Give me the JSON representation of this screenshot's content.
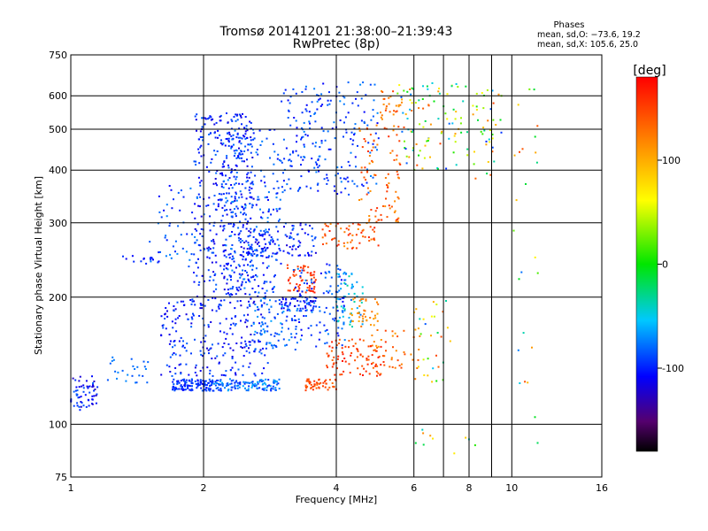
{
  "chart_data": {
    "type": "scatter",
    "title": "Tromsø 20141201 21:38:00–21:39:43",
    "subtitle": "RwPretec (8p)",
    "xlabel": "Frequency [MHz]",
    "ylabel": "Stationary phase Virtual Height [km]",
    "x_scale": "log",
    "y_scale": "log",
    "xlim": [
      1,
      16
    ],
    "ylim": [
      75,
      750
    ],
    "x_ticks": [
      1,
      2,
      4,
      6,
      8,
      10,
      16
    ],
    "y_ticks": [
      75,
      100,
      200,
      300,
      400,
      500,
      600,
      750
    ],
    "x_minor_gridlines": [
      7,
      9
    ],
    "grid": true,
    "legend": {
      "title": "Phases",
      "lines": [
        "mean, sd,O: −73.6, 19.2",
        "mean, sd,X: 105.6, 25.0"
      ],
      "placement": "top-right"
    },
    "colorbar": {
      "label": "[deg]",
      "range": [
        -180,
        180
      ],
      "ticks": [
        100,
        0,
        -100
      ],
      "colormap": "rainbow"
    },
    "clusters": [
      {
        "x": [
          1.0,
          1.15
        ],
        "y": [
          108,
          130
        ],
        "phase": [
          -130,
          -80
        ],
        "n": 60
      },
      {
        "x": [
          1.15,
          1.5
        ],
        "y": [
          125,
          145
        ],
        "phase": [
          -90,
          -70
        ],
        "n": 25
      },
      {
        "x": [
          1.7,
          2.1
        ],
        "y": [
          120,
          128
        ],
        "phase": [
          -110,
          -80
        ],
        "n": 120
      },
      {
        "x": [
          2.1,
          3.0
        ],
        "y": [
          120,
          128
        ],
        "phase": [
          -100,
          -60
        ],
        "n": 120
      },
      {
        "x": [
          1.6,
          2.8
        ],
        "y": [
          130,
          200
        ],
        "phase": [
          -120,
          -80
        ],
        "n": 240
      },
      {
        "x": [
          1.9,
          2.6
        ],
        "y": [
          200,
          550
        ],
        "phase": [
          -120,
          -80
        ],
        "n": 380
      },
      {
        "x": [
          2.2,
          3.0
        ],
        "y": [
          200,
          500
        ],
        "phase": [
          -110,
          -70
        ],
        "n": 260
      },
      {
        "x": [
          1.5,
          1.95
        ],
        "y": [
          235,
          370
        ],
        "phase": [
          -110,
          -70
        ],
        "n": 50
      },
      {
        "x": [
          1.3,
          1.6
        ],
        "y": [
          238,
          252
        ],
        "phase": [
          -110,
          -90
        ],
        "n": 12
      },
      {
        "x": [
          2.4,
          3.6
        ],
        "y": [
          250,
          300
        ],
        "phase": [
          -120,
          -80
        ],
        "n": 110
      },
      {
        "x": [
          3.0,
          3.6
        ],
        "y": [
          185,
          200
        ],
        "phase": [
          -120,
          -90
        ],
        "n": 45
      },
      {
        "x": [
          2.6,
          3.2
        ],
        "y": [
          150,
          200
        ],
        "phase": [
          -100,
          -60
        ],
        "n": 80
      },
      {
        "x": [
          3.1,
          3.6
        ],
        "y": [
          205,
          240
        ],
        "phase": [
          140,
          170
        ],
        "n": 60
      },
      {
        "x": [
          3.4,
          4.0
        ],
        "y": [
          120,
          128
        ],
        "phase": [
          130,
          160
        ],
        "n": 50
      },
      {
        "x": [
          3.8,
          5.2
        ],
        "y": [
          130,
          160
        ],
        "phase": [
          130,
          170
        ],
        "n": 90
      },
      {
        "x": [
          3.2,
          4.2
        ],
        "y": [
          150,
          240
        ],
        "phase": [
          -110,
          -70
        ],
        "n": 120
      },
      {
        "x": [
          4.0,
          4.6
        ],
        "y": [
          170,
          230
        ],
        "phase": [
          -80,
          -30
        ],
        "n": 60
      },
      {
        "x": [
          4.3,
          5.0
        ],
        "y": [
          170,
          200
        ],
        "phase": [
          100,
          130
        ],
        "n": 40
      },
      {
        "x": [
          3.7,
          5.0
        ],
        "y": [
          260,
          300
        ],
        "phase": [
          110,
          170
        ],
        "n": 60
      },
      {
        "x": [
          4.5,
          5.6
        ],
        "y": [
          300,
          520
        ],
        "phase": [
          110,
          160
        ],
        "n": 90
      },
      {
        "x": [
          5.0,
          5.6
        ],
        "y": [
          520,
          620
        ],
        "phase": [
          110,
          150
        ],
        "n": 25
      },
      {
        "x": [
          3.0,
          5.0
        ],
        "y": [
          350,
          650
        ],
        "phase": [
          -110,
          -70
        ],
        "n": 220
      },
      {
        "x": [
          4.8,
          6.2
        ],
        "y": [
          135,
          170
        ],
        "phase": [
          100,
          150
        ],
        "n": 40
      },
      {
        "x": [
          5.5,
          8.0
        ],
        "y": [
          400,
          650
        ],
        "phase": [
          -100,
          150
        ],
        "n": 100
      },
      {
        "x": [
          8.0,
          9.5
        ],
        "y": [
          380,
          620
        ],
        "phase": [
          -100,
          150
        ],
        "n": 40
      },
      {
        "x": [
          6.0,
          7.5
        ],
        "y": [
          125,
          200
        ],
        "phase": [
          -90,
          150
        ],
        "n": 30
      },
      {
        "x": [
          10.0,
          11.5
        ],
        "y": [
          90,
          640
        ],
        "phase": [
          -90,
          150
        ],
        "n": 25
      },
      {
        "x": [
          5.8,
          8.5
        ],
        "y": [
          85,
          100
        ],
        "phase": [
          -90,
          150
        ],
        "n": 10
      }
    ]
  }
}
